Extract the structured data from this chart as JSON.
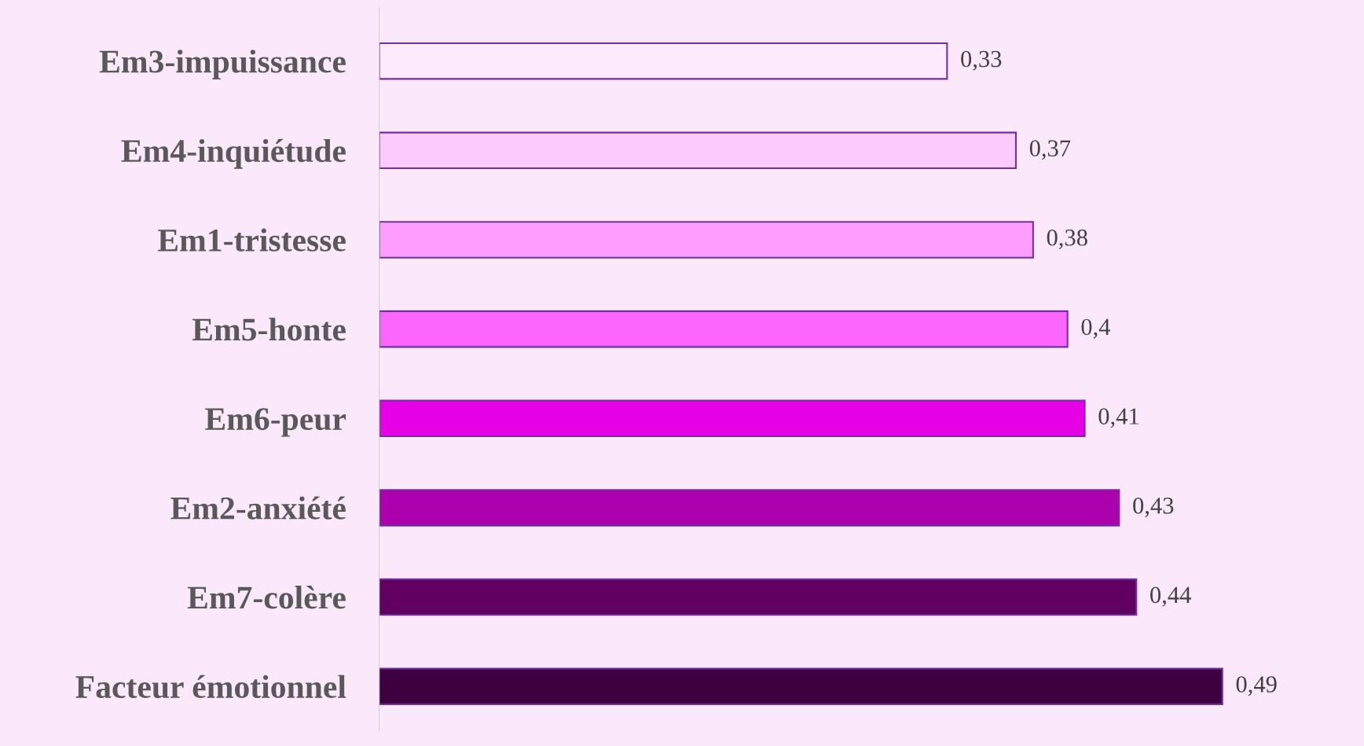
{
  "chart_data": {
    "type": "bar",
    "orientation": "horizontal",
    "categories": [
      "Em3-impuissance",
      "Em4-inquiétude",
      "Em1-tristesse",
      "Em5-honte",
      "Em6-peur",
      "Em2-anxiété",
      "Em7-colère",
      "Facteur émotionnel"
    ],
    "values": [
      0.33,
      0.37,
      0.38,
      0.4,
      0.41,
      0.43,
      0.44,
      0.49
    ],
    "value_labels": [
      "0,33",
      "0,37",
      "0,38",
      "0,4",
      "0,41",
      "0,43",
      "0,44",
      "0,49"
    ],
    "colors": [
      "#fdeafd",
      "#fccafc",
      "#fd9dfd",
      "#fd66fd",
      "#e600e6",
      "#ad00ad",
      "#600060",
      "#3f003f"
    ],
    "grid": false,
    "legend": false
  }
}
